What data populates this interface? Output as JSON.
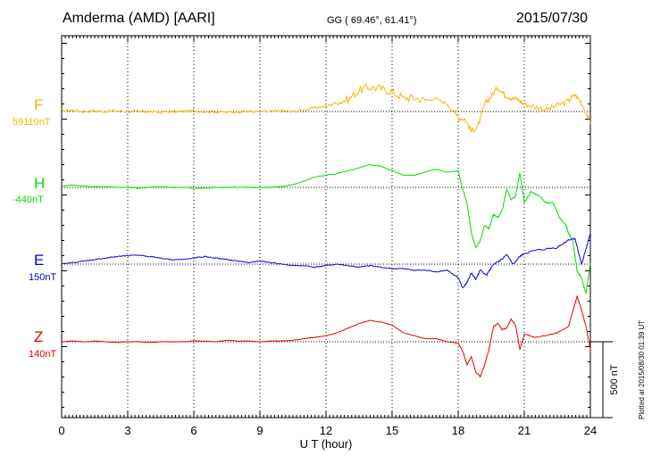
{
  "header": {
    "station": "Amderma (AMD)  [AARI]",
    "coords": "GG ( 69.46°,  61.41°)",
    "date": "2015/07/30"
  },
  "footer": {
    "plotted": "Plotted at 2015/08/30 01:39 UT"
  },
  "chart_data": {
    "type": "line",
    "xlabel": "U T (hour)",
    "xlim": [
      0,
      24
    ],
    "xticks": [
      "0",
      "3",
      "6",
      "9",
      "12",
      "15",
      "18",
      "21",
      "24"
    ],
    "scale_bar_label": "500 nT",
    "scale_bar_nT": 500,
    "grid": true,
    "series": [
      {
        "name": "F",
        "baseline": "59110nT",
        "color": "#f5b800",
        "x": [
          0,
          0.5,
          1,
          1.5,
          2,
          2.5,
          3,
          3.5,
          4,
          4.5,
          5,
          5.5,
          6,
          6.5,
          7,
          7.5,
          8,
          8.5,
          9,
          9.5,
          10,
          10.5,
          11,
          11.5,
          12,
          12.5,
          13,
          13.5,
          14,
          14.5,
          15,
          15.5,
          16,
          16.5,
          17,
          17.5,
          18,
          18.3,
          18.6,
          18.9,
          19.2,
          19.5,
          19.8,
          20.1,
          20.4,
          20.7,
          21,
          21.5,
          22,
          22.5,
          23,
          23.3,
          23.6,
          24
        ],
        "values": [
          5,
          10,
          0,
          5,
          0,
          5,
          0,
          0,
          0,
          -5,
          0,
          0,
          5,
          0,
          0,
          -5,
          0,
          0,
          0,
          0,
          5,
          0,
          10,
          25,
          35,
          60,
          80,
          140,
          160,
          150,
          130,
          90,
          90,
          75,
          85,
          50,
          -40,
          -50,
          -130,
          -100,
          50,
          100,
          160,
          110,
          90,
          80,
          50,
          30,
          10,
          40,
          70,
          110,
          60,
          -80
        ]
      },
      {
        "name": "H",
        "baseline": "-440nT",
        "color": "#00e000",
        "x": [
          0,
          0.5,
          1,
          1.5,
          2,
          2.5,
          3,
          3.5,
          4,
          4.5,
          5,
          5.5,
          6,
          6.5,
          7,
          7.5,
          8,
          8.5,
          9,
          9.5,
          10,
          10.5,
          11,
          11.5,
          12,
          12.5,
          13,
          13.5,
          14,
          14.5,
          15,
          15.5,
          16,
          16.5,
          17,
          17.5,
          18,
          18.2,
          18.4,
          18.6,
          18.8,
          19,
          19.2,
          19.4,
          19.6,
          19.8,
          20,
          20.2,
          20.4,
          20.6,
          20.8,
          21,
          21.3,
          21.6,
          22,
          22.3,
          22.6,
          22.9,
          23,
          23.2,
          23.4,
          23.6,
          23.8,
          24
        ],
        "values": [
          10,
          15,
          10,
          5,
          5,
          0,
          0,
          -5,
          0,
          5,
          0,
          0,
          -5,
          -5,
          0,
          0,
          0,
          0,
          0,
          0,
          5,
          20,
          40,
          70,
          80,
          90,
          110,
          130,
          150,
          140,
          110,
          80,
          80,
          100,
          120,
          100,
          110,
          -10,
          -100,
          -300,
          -400,
          -350,
          -250,
          -270,
          -180,
          -200,
          -150,
          -10,
          -80,
          -60,
          100,
          -100,
          -30,
          -50,
          -100,
          -100,
          -200,
          -250,
          -300,
          -350,
          -550,
          -600,
          -700,
          -500
        ]
      },
      {
        "name": "E",
        "baseline": "150nT",
        "color": "#0000e0",
        "x": [
          0,
          0.5,
          1,
          1.5,
          2,
          2.5,
          3,
          3.5,
          4,
          4.5,
          5,
          5.5,
          6,
          6.5,
          7,
          7.5,
          8,
          8.5,
          9,
          9.5,
          10,
          10.5,
          11,
          11.5,
          12,
          12.5,
          13,
          13.5,
          14,
          14.5,
          15,
          15.5,
          16,
          16.5,
          17,
          17.5,
          18,
          18.2,
          18.4,
          18.6,
          18.8,
          19,
          19.3,
          19.6,
          19.9,
          20.2,
          20.5,
          20.8,
          21,
          21.5,
          22,
          22.5,
          23,
          23.3,
          23.6,
          23.8,
          24
        ],
        "values": [
          0,
          10,
          20,
          30,
          40,
          50,
          55,
          60,
          50,
          40,
          30,
          30,
          40,
          50,
          40,
          30,
          20,
          10,
          20,
          10,
          0,
          -10,
          -10,
          -20,
          -10,
          0,
          -10,
          -20,
          -10,
          -20,
          -30,
          -30,
          -40,
          -40,
          -50,
          -40,
          -90,
          -160,
          -120,
          -60,
          -100,
          -40,
          -70,
          0,
          20,
          60,
          0,
          50,
          70,
          90,
          100,
          110,
          160,
          170,
          0,
          100,
          200
        ]
      },
      {
        "name": "Z",
        "baseline": "140nT",
        "color": "#e00000",
        "x": [
          0,
          0.5,
          1,
          1.5,
          2,
          2.5,
          3,
          3.5,
          4,
          4.5,
          5,
          5.5,
          6,
          6.5,
          7,
          7.5,
          8,
          8.5,
          9,
          9.5,
          10,
          10.5,
          11,
          11.5,
          12,
          12.5,
          13,
          13.5,
          14,
          14.5,
          15,
          15.5,
          16,
          16.5,
          17,
          17.5,
          18,
          18.2,
          18.4,
          18.6,
          18.8,
          19,
          19.2,
          19.4,
          19.6,
          19.8,
          20,
          20.2,
          20.4,
          20.6,
          20.8,
          21,
          21.5,
          22,
          22.5,
          23,
          23.2,
          23.4,
          23.6,
          23.8,
          24
        ],
        "values": [
          0,
          5,
          0,
          5,
          0,
          -5,
          0,
          0,
          -5,
          0,
          0,
          0,
          5,
          5,
          0,
          10,
          5,
          5,
          0,
          5,
          5,
          10,
          20,
          30,
          40,
          60,
          90,
          120,
          140,
          130,
          110,
          60,
          40,
          20,
          20,
          0,
          -10,
          -60,
          -150,
          -100,
          -200,
          -230,
          -150,
          -50,
          100,
          120,
          80,
          90,
          150,
          110,
          -50,
          50,
          30,
          40,
          60,
          100,
          200,
          300,
          210,
          100,
          -50
        ]
      }
    ]
  }
}
